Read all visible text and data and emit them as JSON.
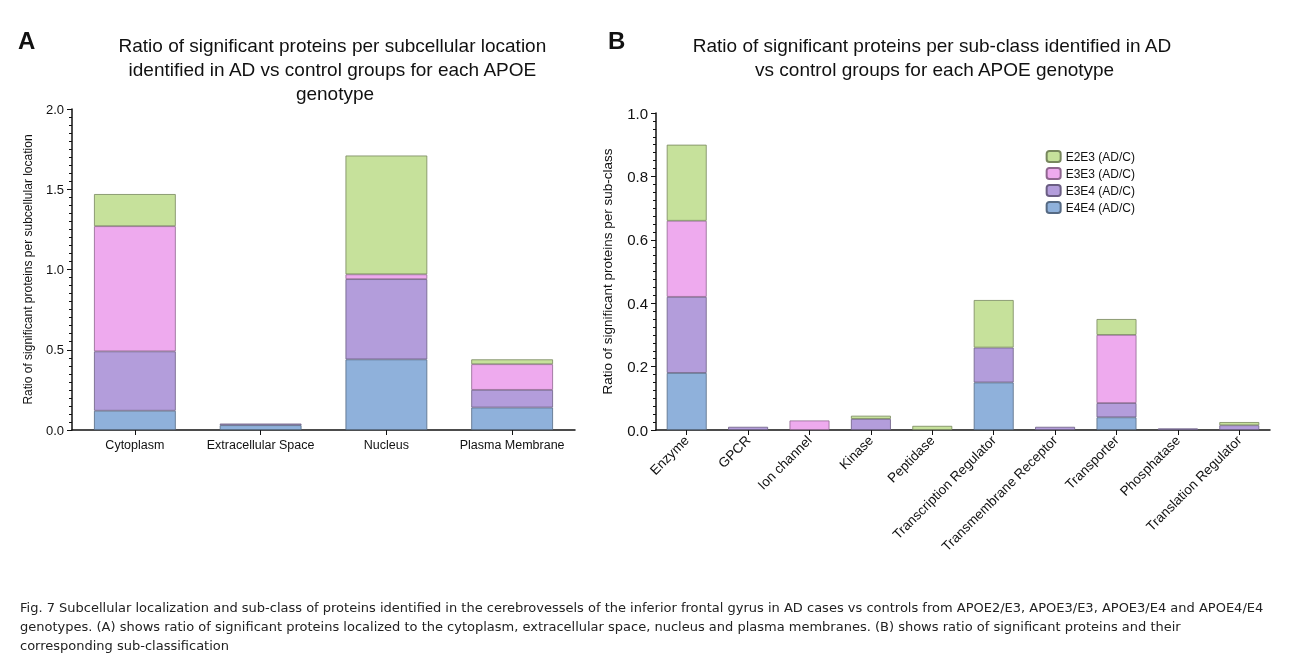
{
  "chart_data": [
    {
      "type": "bar",
      "title": "Ratio of significant proteins per subcellular location identified in AD vs control groups for each APOE genotype",
      "ylabel": "Ratio of significant proteins per subcellular location",
      "annotations": [
        "A"
      ],
      "categories": [
        "Cytoplasm",
        "Extracellular Space",
        "Nucleus",
        "Plasma Membrane"
      ],
      "stacked": true,
      "legend": false,
      "grid": false,
      "ylim": [
        0,
        2
      ],
      "yticks": [
        {
          "value": 0,
          "label": "0.0"
        },
        {
          "value": 0.5,
          "label": "0.5"
        },
        {
          "value": 1,
          "label": "1.0"
        },
        {
          "value": 1.5,
          "label": "1.5"
        },
        {
          "value": 2,
          "label": "2.0"
        }
      ],
      "series": [
        {
          "color": "#8fb1db",
          "values": [
            0.12,
            0.03,
            0.44,
            0.14
          ]
        },
        {
          "color": "#b39ddb",
          "values": [
            0.37,
            0.01,
            0.5,
            0.11
          ]
        },
        {
          "color": "#eeaaee",
          "values": [
            0.78,
            null,
            0.03,
            0.16
          ]
        },
        {
          "color": "#c6e19b",
          "values": [
            0.2,
            null,
            0.74,
            0.03
          ]
        }
      ]
    },
    {
      "type": "bar",
      "title": "Ratio of significant proteins per sub-class identified in AD vs control groups for each APOE genotype",
      "ylabel": "Ratio of significant proteins per sub-class",
      "annotations": [
        "B",
        "Fig. 7  Subcellular localization and sub-class of proteins identified in the cerebrovessels of the inferior frontal gyrus in AD cases vs controls  from APOE2/E3, APOE3/E3, APOE3/E4 and APOE4/E4 genotypes. (A) shows ratio of significant proteins localized to the cytoplasm, extracellular space, nucleus and plasma membranes. (B) shows ratio of significant proteins and their corresponding sub-classification"
      ],
      "categories": [
        "Enzyme",
        "GPCR",
        "Ion channel",
        "Kinase",
        "Peptidase",
        "Transcription Regulator",
        "Transmembrane Receptor",
        "Transporter",
        "Phosphatase",
        "Translation Regulator"
      ],
      "stacked": true,
      "legend": "top right",
      "grid": false,
      "ylim": [
        0,
        1
      ],
      "yticks": [
        {
          "value": 0,
          "label": "0.0"
        },
        {
          "value": 0.2,
          "label": "0.2"
        },
        {
          "value": 0.4,
          "label": "0.4"
        },
        {
          "value": 0.6,
          "label": "0.6"
        },
        {
          "value": 0.8,
          "label": "0.8"
        },
        {
          "value": 1,
          "label": "1.0"
        }
      ],
      "series": [
        {
          "name": "E4E4 (AD/C)",
          "color": "#8fb1db",
          "values": [
            0.18,
            null,
            null,
            null,
            null,
            0.15,
            null,
            0.04,
            null,
            null
          ]
        },
        {
          "name": "E3E4 (AD/C)",
          "color": "#b39ddb",
          "values": [
            0.24,
            0.01,
            null,
            0.035,
            null,
            0.11,
            0.01,
            0.045,
            0.005,
            0.015
          ]
        },
        {
          "name": "E3E3 (AD/C)",
          "color": "#eeaaee",
          "values": [
            0.24,
            null,
            0.03,
            null,
            null,
            null,
            null,
            0.215,
            null,
            null
          ]
        },
        {
          "name": "E2E3 (AD/C)",
          "color": "#c6e19b",
          "values": [
            0.24,
            null,
            null,
            0.01,
            0.013,
            0.15,
            null,
            0.05,
            null,
            0.01
          ]
        }
      ]
    }
  ]
}
